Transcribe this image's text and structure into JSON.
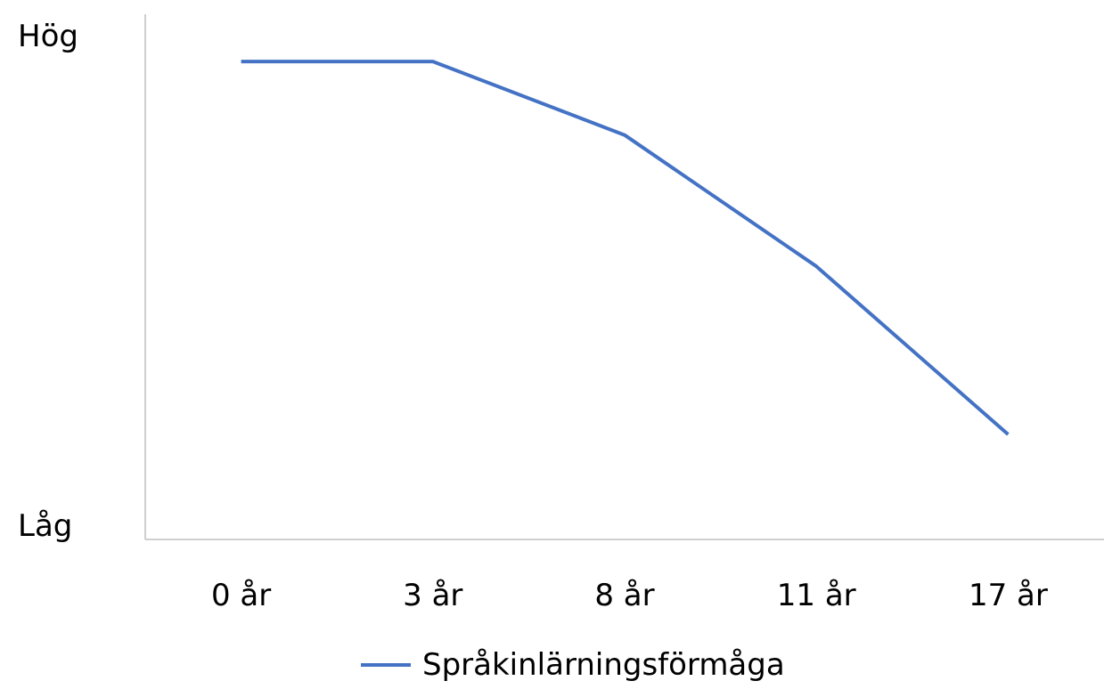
{
  "chart_data": {
    "type": "line",
    "title": "",
    "xlabel": "",
    "ylabel": "",
    "categories": [
      "0 år",
      "3 år",
      "8 år",
      "11 år",
      "17 år"
    ],
    "y_axis_labels": {
      "high": "Hög",
      "low": "Låg"
    },
    "ylim": [
      0,
      1
    ],
    "grid": false,
    "legend_position": "bottom",
    "series": [
      {
        "name": "Språkinlärningsförmåga",
        "color": "#4472C4",
        "values": [
          0.91,
          0.91,
          0.77,
          0.52,
          0.2
        ]
      }
    ],
    "axis_color": "#bfbfbf"
  }
}
